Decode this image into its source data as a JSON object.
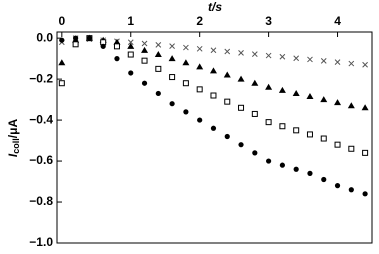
{
  "chart_data": {
    "type": "scatter",
    "x_label": "t/s",
    "y_label": {
      "main": "I",
      "sub": "coll",
      "unit": "/μA"
    },
    "xlim": [
      -0.07,
      4.5
    ],
    "xticks": [
      0,
      1,
      2,
      3,
      4
    ],
    "ylim": [
      -1.0,
      0.03
    ],
    "yticks": [
      {
        "value": 0,
        "label": "0.0"
      },
      {
        "value": -0.2,
        "label": "−0.2"
      },
      {
        "value": -0.4,
        "label": "−0.4"
      },
      {
        "value": -0.6,
        "label": "−0.6"
      },
      {
        "value": -0.8,
        "label": "−0.8"
      },
      {
        "value": -1.0,
        "label": "−1.0"
      }
    ],
    "x": [
      0,
      0.2,
      0.4,
      0.6,
      0.8,
      1.0,
      1.2,
      1.4,
      1.6,
      1.8,
      2.0,
      2.2,
      2.4,
      2.6,
      2.8,
      3.0,
      3.2,
      3.4,
      3.6,
      3.8,
      4.0,
      4.2,
      4.4
    ],
    "series": [
      {
        "marker": "cross",
        "color": "#555555",
        "values": [
          -0.02,
          0,
          -0.005,
          -0.01,
          -0.015,
          -0.02,
          -0.026,
          -0.033,
          -0.039,
          -0.046,
          -0.052,
          -0.059,
          -0.065,
          -0.072,
          -0.078,
          -0.085,
          -0.091,
          -0.098,
          -0.104,
          -0.111,
          -0.117,
          -0.124,
          -0.13
        ]
      },
      {
        "marker": "triangle",
        "color": "#000000",
        "values": [
          -0.12,
          -0.01,
          0,
          -0.01,
          -0.02,
          -0.04,
          -0.06,
          -0.08,
          -0.1,
          -0.12,
          -0.14,
          -0.16,
          -0.18,
          -0.2,
          -0.22,
          -0.24,
          -0.255,
          -0.27,
          -0.285,
          -0.3,
          -0.315,
          -0.33,
          -0.34
        ]
      },
      {
        "marker": "square",
        "color": "#000000",
        "values": [
          -0.22,
          -0.03,
          0,
          -0.02,
          -0.04,
          -0.08,
          -0.11,
          -0.15,
          -0.19,
          -0.22,
          -0.25,
          -0.28,
          -0.31,
          -0.34,
          -0.37,
          -0.41,
          -0.43,
          -0.45,
          -0.47,
          -0.49,
          -0.52,
          -0.54,
          -0.56
        ]
      },
      {
        "marker": "circle",
        "color": "#000000",
        "values": [
          -0.01,
          0,
          0,
          -0.04,
          -0.1,
          -0.17,
          -0.22,
          -0.27,
          -0.32,
          -0.36,
          -0.4,
          -0.44,
          -0.48,
          -0.52,
          -0.56,
          -0.6,
          -0.62,
          -0.64,
          -0.66,
          -0.69,
          -0.72,
          -0.74,
          -0.76
        ]
      }
    ]
  }
}
